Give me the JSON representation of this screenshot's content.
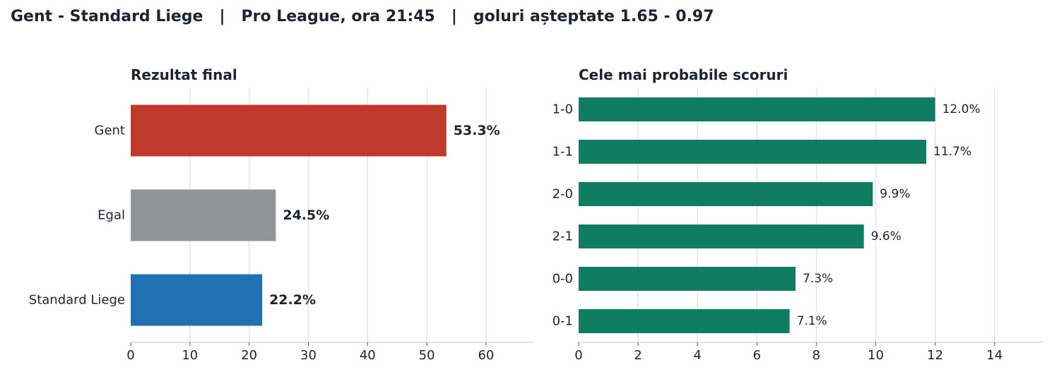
{
  "suptitle": "Gent - Standard Liege   |   Pro League, ora 21:45   |   goluri așteptate 1.65 - 0.97",
  "chart_data": [
    {
      "type": "bar",
      "orientation": "horizontal",
      "title": "Rezultat final",
      "categories": [
        "Gent",
        "Egal",
        "Standard Liege"
      ],
      "values": [
        53.3,
        24.5,
        22.2
      ],
      "value_labels": [
        "53.3%",
        "24.5%",
        "22.2%"
      ],
      "colors": [
        "#c0392b",
        "#8e959b",
        "#2170b1"
      ],
      "xlim": [
        0,
        68
      ],
      "xticks": [
        0,
        10,
        20,
        30,
        40,
        50,
        60
      ],
      "grid": "vertical",
      "xlabel": "",
      "ylabel": ""
    },
    {
      "type": "bar",
      "orientation": "horizontal",
      "title": "Cele mai probabile scoruri",
      "categories": [
        "1-0",
        "1-1",
        "2-0",
        "2-1",
        "0-0",
        "0-1"
      ],
      "values": [
        12.0,
        11.7,
        9.9,
        9.6,
        7.3,
        7.1
      ],
      "value_labels": [
        "12.0%",
        "11.7%",
        "9.9%",
        "9.6%",
        "7.3%",
        "7.1%"
      ],
      "colors": [
        "#107c62"
      ],
      "xlim": [
        0,
        15.6
      ],
      "xticks": [
        0,
        2,
        4,
        6,
        8,
        10,
        12,
        14
      ],
      "grid": "vertical",
      "xlabel": "",
      "ylabel": ""
    }
  ]
}
